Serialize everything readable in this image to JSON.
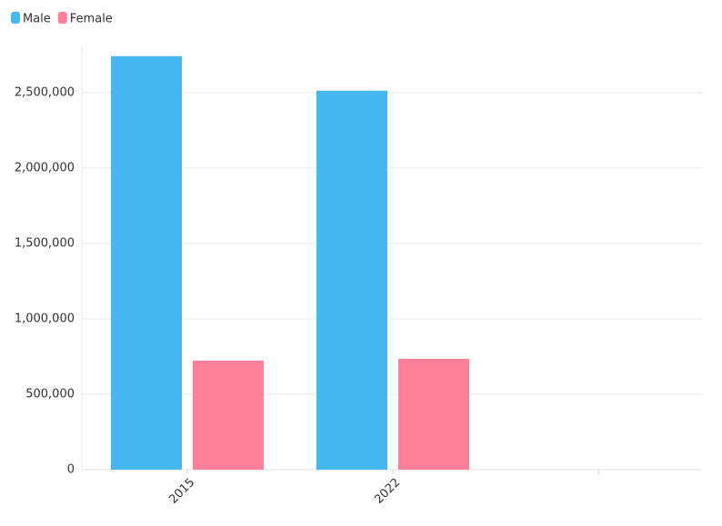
{
  "chart_data": {
    "type": "bar",
    "categories": [
      "2015",
      "2022",
      null
    ],
    "series": [
      {
        "name": "Male",
        "color": "#46b7f0",
        "values": [
          2741000,
          2512000,
          null
        ]
      },
      {
        "name": "Female",
        "color": "#ff7f98",
        "values": [
          723000,
          735000,
          null
        ]
      }
    ],
    "ylim": [
      0,
      2800000
    ],
    "yticks": [
      0,
      {
        "value": 500000,
        "label": "500,000"
      },
      {
        "value": 1000000,
        "label": "1,000,000"
      },
      {
        "value": 1500000,
        "label": "1,500,000"
      },
      {
        "value": 2000000,
        "label": "2,000,000"
      },
      {
        "value": 2500000,
        "label": "2,500,000"
      }
    ],
    "grid": true,
    "legend": "top-left"
  }
}
